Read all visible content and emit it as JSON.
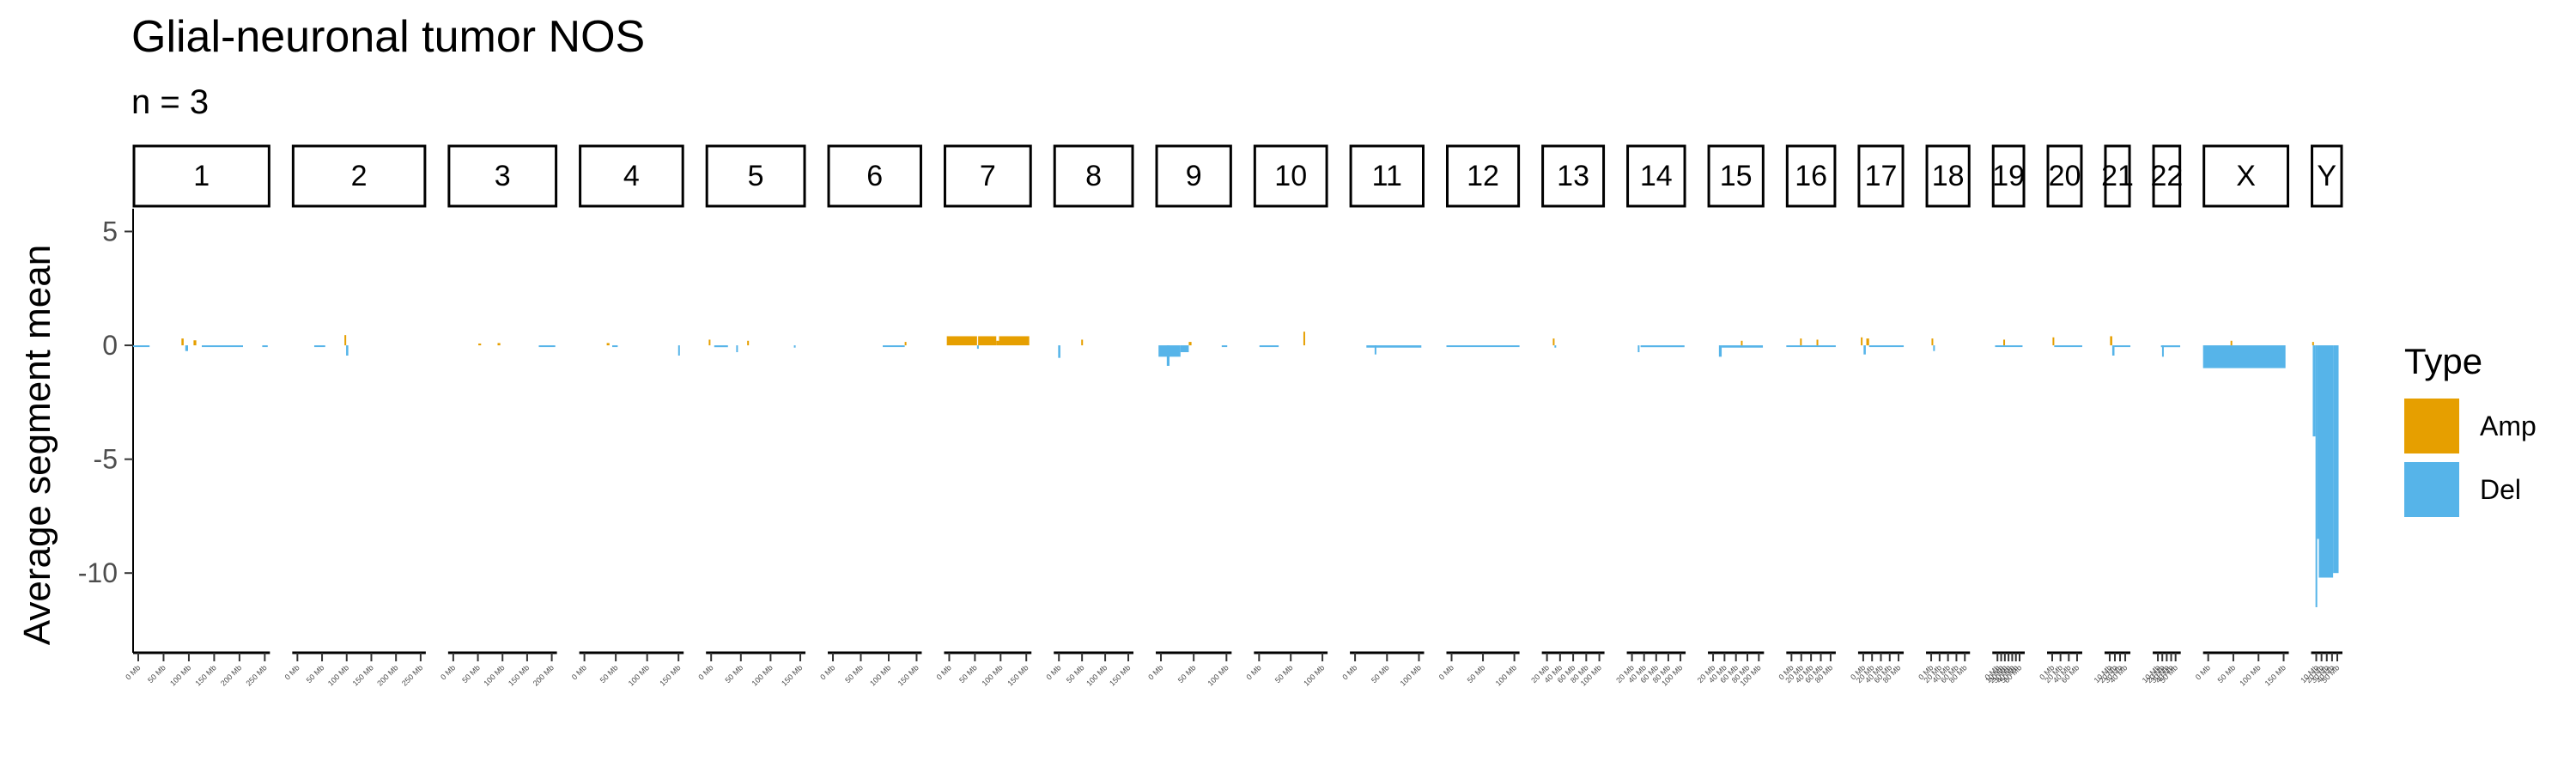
{
  "chart_data": {
    "type": "bar",
    "title": "Glial-neuronal tumor NOS",
    "subtitle": "n = 3",
    "ylabel": "Average segment mean",
    "xlabel": "",
    "ylim": [
      -13.5,
      6
    ],
    "yticks": [
      5,
      0,
      -5,
      -10
    ],
    "grid": false,
    "legend": {
      "title": "Type",
      "position": "right",
      "entries": [
        {
          "name": "Amp",
          "color": "#E69F00"
        },
        {
          "name": "Del",
          "color": "#56B4E9"
        }
      ]
    },
    "facets": [
      {
        "chrom": "1",
        "length_mb": 249,
        "ticks": [
          "0 Mb",
          "50 Mb",
          "100 Mb",
          "150 Mb",
          "200 Mb",
          "250 Mb"
        ],
        "segments": [
          {
            "start": 0,
            "end": 30,
            "value": -0.03,
            "type": "Del"
          },
          {
            "start": 88,
            "end": 92,
            "value": 0.3,
            "type": "Amp"
          },
          {
            "start": 95,
            "end": 100,
            "value": -0.25,
            "type": "Del"
          },
          {
            "start": 110,
            "end": 115,
            "value": 0.22,
            "type": "Amp"
          },
          {
            "start": 125,
            "end": 200,
            "value": -0.06,
            "type": "Del"
          },
          {
            "start": 235,
            "end": 245,
            "value": -0.05,
            "type": "Del"
          }
        ]
      },
      {
        "chrom": "2",
        "length_mb": 243,
        "ticks": [
          "0 Mb",
          "50 Mb",
          "100 Mb",
          "150 Mb",
          "200 Mb",
          "250 Mb"
        ],
        "segments": [
          {
            "start": 40,
            "end": 60,
            "value": -0.06,
            "type": "Del"
          },
          {
            "start": 95,
            "end": 98,
            "value": 0.45,
            "type": "Amp"
          },
          {
            "start": 98,
            "end": 102,
            "value": -0.45,
            "type": "Del"
          }
        ]
      },
      {
        "chrom": "3",
        "length_mb": 198,
        "ticks": [
          "0 Mb",
          "50 Mb",
          "100 Mb",
          "150 Mb",
          "200 Mb"
        ],
        "segments": [
          {
            "start": 55,
            "end": 60,
            "value": 0.08,
            "type": "Amp"
          },
          {
            "start": 90,
            "end": 95,
            "value": 0.1,
            "type": "Amp"
          },
          {
            "start": 165,
            "end": 195,
            "value": -0.07,
            "type": "Del"
          }
        ]
      },
      {
        "chrom": "4",
        "length_mb": 190,
        "ticks": [
          "0 Mb",
          "50 Mb",
          "100 Mb",
          "150 Mb"
        ],
        "segments": [
          {
            "start": 50,
            "end": 55,
            "value": 0.1,
            "type": "Amp"
          },
          {
            "start": 60,
            "end": 70,
            "value": -0.06,
            "type": "Del"
          },
          {
            "start": 180,
            "end": 182,
            "value": -0.45,
            "type": "Del"
          }
        ]
      },
      {
        "chrom": "5",
        "length_mb": 181,
        "ticks": [
          "0 Mb",
          "50 Mb",
          "100 Mb",
          "150 Mb"
        ],
        "segments": [
          {
            "start": 5,
            "end": 8,
            "value": 0.25,
            "type": "Amp"
          },
          {
            "start": 15,
            "end": 40,
            "value": -0.08,
            "type": "Del"
          },
          {
            "start": 55,
            "end": 58,
            "value": -0.3,
            "type": "Del"
          },
          {
            "start": 75,
            "end": 78,
            "value": 0.2,
            "type": "Amp"
          },
          {
            "start": 160,
            "end": 163,
            "value": -0.1,
            "type": "Del"
          }
        ]
      },
      {
        "chrom": "6",
        "length_mb": 171,
        "ticks": [
          "0 Mb",
          "50 Mb",
          "100 Mb",
          "150 Mb"
        ],
        "segments": [
          {
            "start": 100,
            "end": 140,
            "value": -0.05,
            "type": "Del"
          },
          {
            "start": 140,
            "end": 143,
            "value": 0.15,
            "type": "Amp"
          }
        ]
      },
      {
        "chrom": "7",
        "length_mb": 159,
        "ticks": [
          "0 Mb",
          "50 Mb",
          "100 Mb",
          "150 Mb"
        ],
        "segments": [
          {
            "start": 5,
            "end": 60,
            "value": 0.4,
            "type": "Amp"
          },
          {
            "start": 60,
            "end": 62,
            "value": -0.15,
            "type": "Del"
          },
          {
            "start": 62,
            "end": 95,
            "value": 0.4,
            "type": "Amp"
          },
          {
            "start": 95,
            "end": 100,
            "value": 0.2,
            "type": "Amp"
          },
          {
            "start": 100,
            "end": 155,
            "value": 0.4,
            "type": "Amp"
          }
        ]
      },
      {
        "chrom": "8",
        "length_mb": 145,
        "ticks": [
          "0 Mb",
          "50 Mb",
          "100 Mb",
          "150 Mb"
        ],
        "segments": [
          {
            "start": 8,
            "end": 12,
            "value": -0.55,
            "type": "Del"
          },
          {
            "start": 50,
            "end": 53,
            "value": 0.25,
            "type": "Amp"
          }
        ]
      },
      {
        "chrom": "9",
        "length_mb": 138,
        "ticks": [
          "0 Mb",
          "50 Mb",
          "100 Mb"
        ],
        "segments": [
          {
            "start": 5,
            "end": 45,
            "value": -0.5,
            "type": "Del"
          },
          {
            "start": 20,
            "end": 25,
            "value": -0.9,
            "type": "Del"
          },
          {
            "start": 45,
            "end": 60,
            "value": -0.3,
            "type": "Del"
          },
          {
            "start": 60,
            "end": 65,
            "value": 0.15,
            "type": "Amp"
          },
          {
            "start": 120,
            "end": 130,
            "value": -0.05,
            "type": "Del"
          }
        ]
      },
      {
        "chrom": "10",
        "length_mb": 134,
        "ticks": [
          "0 Mb",
          "50 Mb",
          "100 Mb"
        ],
        "segments": [
          {
            "start": 10,
            "end": 45,
            "value": -0.06,
            "type": "Del"
          },
          {
            "start": 90,
            "end": 93,
            "value": 0.6,
            "type": "Amp"
          }
        ]
      },
      {
        "chrom": "11",
        "length_mb": 135,
        "ticks": [
          "0 Mb",
          "50 Mb",
          "100 Mb"
        ],
        "segments": [
          {
            "start": 30,
            "end": 130,
            "value": -0.1,
            "type": "Del"
          },
          {
            "start": 45,
            "end": 48,
            "value": -0.4,
            "type": "Del"
          }
        ]
      },
      {
        "chrom": "12",
        "length_mb": 133,
        "ticks": [
          "0 Mb",
          "50 Mb",
          "100 Mb"
        ],
        "segments": [
          {
            "start": 0,
            "end": 133,
            "value": -0.06,
            "type": "Del"
          }
        ]
      },
      {
        "chrom": "13",
        "length_mb": 114,
        "ticks": [
          "20 Mb",
          "40 Mb",
          "60 Mb",
          "80 Mb",
          "100 Mb"
        ],
        "segments": [
          {
            "start": 20,
            "end": 23,
            "value": 0.3,
            "type": "Amp"
          },
          {
            "start": 23,
            "end": 26,
            "value": -0.1,
            "type": "Del"
          }
        ]
      },
      {
        "chrom": "14",
        "length_mb": 107,
        "ticks": [
          "20 Mb",
          "40 Mb",
          "60 Mb",
          "80 Mb",
          "100 Mb"
        ],
        "segments": [
          {
            "start": 20,
            "end": 23,
            "value": -0.3,
            "type": "Del"
          },
          {
            "start": 25,
            "end": 105,
            "value": -0.08,
            "type": "Del"
          }
        ]
      },
      {
        "chrom": "15",
        "length_mb": 102,
        "ticks": [
          "20 Mb",
          "40 Mb",
          "60 Mb",
          "80 Mb",
          "100 Mb"
        ],
        "segments": [
          {
            "start": 20,
            "end": 25,
            "value": -0.5,
            "type": "Del"
          },
          {
            "start": 25,
            "end": 100,
            "value": -0.1,
            "type": "Del"
          },
          {
            "start": 60,
            "end": 63,
            "value": 0.2,
            "type": "Amp"
          }
        ]
      },
      {
        "chrom": "16",
        "length_mb": 90,
        "ticks": [
          "0 Mb",
          "20 Mb",
          "40 Mb",
          "60 Mb",
          "80 Mb"
        ],
        "segments": [
          {
            "start": 0,
            "end": 90,
            "value": -0.07,
            "type": "Del"
          },
          {
            "start": 25,
            "end": 28,
            "value": 0.3,
            "type": "Amp"
          },
          {
            "start": 55,
            "end": 58,
            "value": 0.25,
            "type": "Amp"
          }
        ]
      },
      {
        "chrom": "17",
        "length_mb": 83,
        "ticks": [
          "0 Mb",
          "20 Mb",
          "40 Mb",
          "60 Mb",
          "80 Mb"
        ],
        "segments": [
          {
            "start": 5,
            "end": 8,
            "value": 0.35,
            "type": "Amp"
          },
          {
            "start": 10,
            "end": 14,
            "value": -0.4,
            "type": "Del"
          },
          {
            "start": 15,
            "end": 20,
            "value": 0.3,
            "type": "Amp"
          },
          {
            "start": 20,
            "end": 83,
            "value": -0.07,
            "type": "Del"
          }
        ]
      },
      {
        "chrom": "18",
        "length_mb": 80,
        "ticks": [
          "0 Mb",
          "20 Mb",
          "40 Mb",
          "60 Mb",
          "80 Mb"
        ],
        "segments": [
          {
            "start": 10,
            "end": 13,
            "value": 0.3,
            "type": "Amp"
          },
          {
            "start": 13,
            "end": 16,
            "value": -0.25,
            "type": "Del"
          }
        ]
      },
      {
        "chrom": "19",
        "length_mb": 59,
        "ticks": [
          "0 Mb",
          "10 Mb",
          "20 Mb",
          "30 Mb",
          "40 Mb",
          "50 Mb",
          "60 Mb"
        ],
        "segments": [
          {
            "start": 5,
            "end": 55,
            "value": -0.06,
            "type": "Del"
          },
          {
            "start": 20,
            "end": 23,
            "value": 0.25,
            "type": "Amp"
          }
        ]
      },
      {
        "chrom": "20",
        "length_mb": 64,
        "ticks": [
          "0 Mb",
          "20 Mb",
          "40 Mb",
          "60 Mb"
        ],
        "segments": [
          {
            "start": 10,
            "end": 13,
            "value": 0.35,
            "type": "Amp"
          },
          {
            "start": 13,
            "end": 64,
            "value": -0.05,
            "type": "Del"
          }
        ]
      },
      {
        "chrom": "21",
        "length_mb": 47,
        "ticks": [
          "10 Mb",
          "20 Mb",
          "30 Mb",
          "40 Mb"
        ],
        "segments": [
          {
            "start": 10,
            "end": 14,
            "value": 0.4,
            "type": "Amp"
          },
          {
            "start": 14,
            "end": 18,
            "value": -0.45,
            "type": "Del"
          },
          {
            "start": 18,
            "end": 47,
            "value": -0.05,
            "type": "Del"
          }
        ]
      },
      {
        "chrom": "22",
        "length_mb": 51,
        "ticks": [
          "10 Mb",
          "20 Mb",
          "30 Mb",
          "40 Mb",
          "50 Mb"
        ],
        "segments": [
          {
            "start": 15,
            "end": 50,
            "value": -0.08,
            "type": "Del"
          },
          {
            "start": 17,
            "end": 20,
            "value": -0.5,
            "type": "Del"
          }
        ]
      },
      {
        "chrom": "X",
        "length_mb": 156,
        "ticks": [
          "0 Mb",
          "50 Mb",
          "100 Mb",
          "150 Mb"
        ],
        "segments": [
          {
            "start": 0,
            "end": 150,
            "value": -1.0,
            "type": "Del"
          },
          {
            "start": 50,
            "end": 53,
            "value": 0.2,
            "type": "Amp"
          }
        ]
      },
      {
        "chrom": "Y",
        "length_mb": 57,
        "ticks": [
          "10 Mb",
          "20 Mb",
          "30 Mb",
          "40 Mb",
          "50 Mb"
        ],
        "segments": [
          {
            "start": 2,
            "end": 3,
            "value": 0.15,
            "type": "Amp"
          },
          {
            "start": 3,
            "end": 8,
            "value": -4.0,
            "type": "Del"
          },
          {
            "start": 8,
            "end": 11,
            "value": -11.5,
            "type": "Del"
          },
          {
            "start": 11,
            "end": 14,
            "value": -8.5,
            "type": "Del"
          },
          {
            "start": 14,
            "end": 40,
            "value": -10.2,
            "type": "Del"
          },
          {
            "start": 40,
            "end": 50,
            "value": -10.0,
            "type": "Del"
          }
        ]
      }
    ]
  }
}
